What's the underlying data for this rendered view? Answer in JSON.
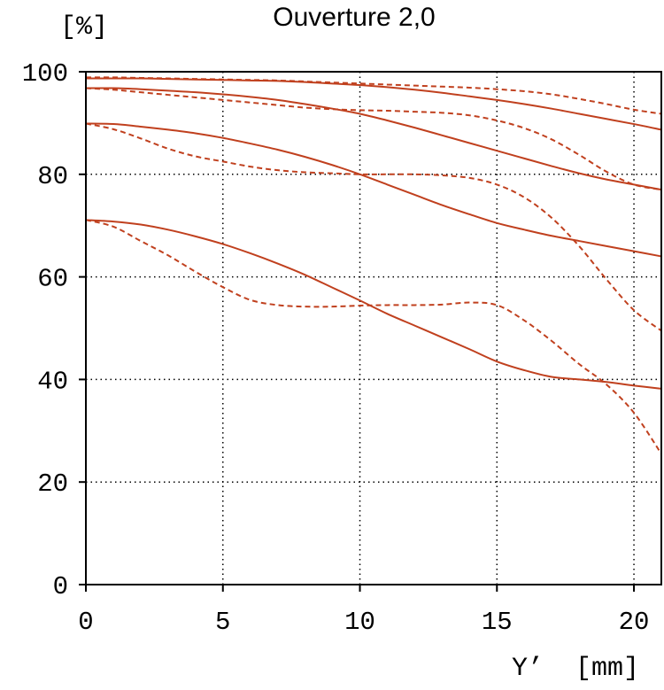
{
  "chart_data": {
    "type": "line",
    "title": "Ouverture 2,0",
    "ylabel": "[%]",
    "xlabel": "Y’  [mm]",
    "xlim": [
      0,
      21
    ],
    "ylim": [
      0,
      100
    ],
    "x_ticks": [
      "0",
      "5",
      "10",
      "15",
      "20"
    ],
    "y_ticks": [
      "0",
      "20",
      "40",
      "60",
      "80",
      "100"
    ],
    "grid": true,
    "line_color": "#c0401e",
    "x": [
      0,
      1,
      2,
      3,
      4,
      5,
      6,
      7,
      8,
      9,
      10,
      11,
      12,
      13,
      14,
      15,
      16,
      17,
      18,
      19,
      20,
      21
    ],
    "series": [
      {
        "style": "solid",
        "values": [
          98.7,
          98.7,
          98.7,
          98.6,
          98.5,
          98.4,
          98.3,
          98.2,
          98.0,
          97.7,
          97.4,
          97.0,
          96.5,
          95.9,
          95.2,
          94.5,
          93.7,
          92.8,
          91.8,
          90.8,
          89.8,
          88.7
        ]
      },
      {
        "style": "dashed",
        "values": [
          98.9,
          98.9,
          98.8,
          98.7,
          98.6,
          98.5,
          98.4,
          98.3,
          98.1,
          97.9,
          97.7,
          97.5,
          97.3,
          97.1,
          96.9,
          96.6,
          96.2,
          95.6,
          94.7,
          93.7,
          92.6,
          91.8
        ]
      },
      {
        "style": "solid",
        "values": [
          96.8,
          96.8,
          96.6,
          96.3,
          96.0,
          95.6,
          95.1,
          94.5,
          93.7,
          92.8,
          91.8,
          90.5,
          89.1,
          87.6,
          86.1,
          84.6,
          83.1,
          81.6,
          80.2,
          79.0,
          78.0,
          77.0
        ]
      },
      {
        "style": "dashed",
        "values": [
          96.8,
          96.5,
          96.0,
          95.5,
          95.0,
          94.5,
          94.0,
          93.5,
          93.0,
          92.7,
          92.5,
          92.4,
          92.2,
          92.0,
          91.5,
          90.5,
          89.0,
          86.8,
          83.8,
          80.5,
          78.0,
          77.0
        ]
      },
      {
        "style": "solid",
        "values": [
          89.9,
          89.8,
          89.3,
          88.7,
          88.0,
          87.1,
          86.0,
          84.8,
          83.4,
          81.8,
          80.0,
          78.0,
          76.0,
          74.0,
          72.2,
          70.5,
          69.2,
          68.0,
          67.0,
          66.0,
          65.0,
          64.0
        ]
      },
      {
        "style": "dashed",
        "values": [
          89.9,
          88.8,
          87.0,
          85.0,
          83.5,
          82.5,
          81.5,
          80.8,
          80.4,
          80.2,
          80.0,
          80.0,
          80.0,
          79.8,
          79.3,
          78.0,
          75.5,
          71.5,
          66.0,
          59.5,
          53.5,
          49.5
        ]
      },
      {
        "style": "solid",
        "values": [
          71.1,
          70.8,
          70.2,
          69.2,
          67.9,
          66.4,
          64.6,
          62.6,
          60.4,
          57.9,
          55.4,
          52.8,
          50.5,
          48.2,
          45.9,
          43.5,
          41.8,
          40.5,
          40.0,
          39.5,
          38.8,
          38.2
        ]
      },
      {
        "style": "dashed",
        "values": [
          71.1,
          69.8,
          67.0,
          64.2,
          61.0,
          58.0,
          55.5,
          54.5,
          54.2,
          54.2,
          54.4,
          54.5,
          54.5,
          54.6,
          55.0,
          54.5,
          51.5,
          47.5,
          43.0,
          39.0,
          33.5,
          25.5
        ]
      }
    ]
  }
}
